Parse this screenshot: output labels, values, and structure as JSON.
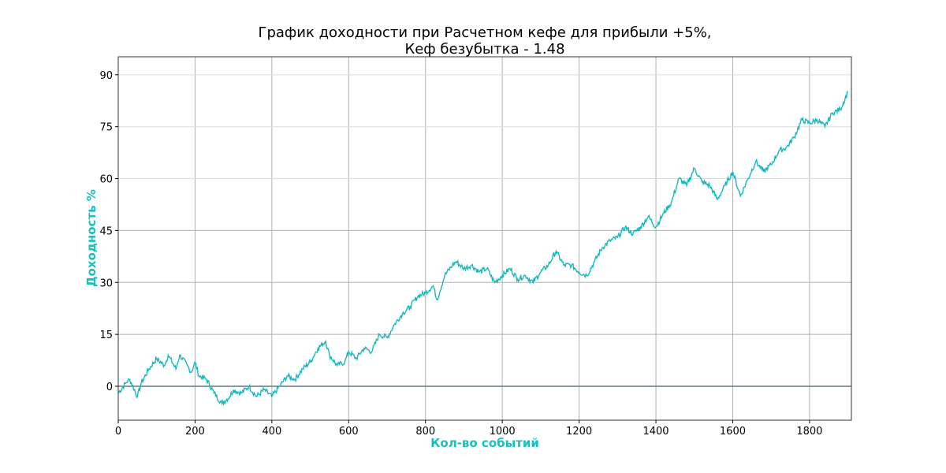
{
  "chart_data": {
    "type": "line",
    "title_lines": [
      "График доходности при Расчетном кефе для прибыли +5%,",
      "Кеф безубытка - 1.48"
    ],
    "xlabel": "Кол-во событий",
    "ylabel": "Доходность %",
    "xlim": [
      0,
      1909
    ],
    "ylim": [
      -9.8,
      95.2
    ],
    "xticks": [
      0,
      200,
      400,
      600,
      800,
      1000,
      1200,
      1400,
      1600,
      1800
    ],
    "yticks": [
      0,
      15,
      30,
      45,
      60,
      75,
      90
    ],
    "grid": true,
    "label_color": "#17bfbf",
    "line_color": "#17b8bd",
    "zero_line_color": "#5f7a86",
    "series": [
      {
        "name": "Доходность",
        "x": [
          0,
          20,
          30,
          50,
          60,
          80,
          100,
          120,
          130,
          150,
          160,
          180,
          190,
          200,
          210,
          230,
          250,
          270,
          290,
          300,
          320,
          340,
          360,
          380,
          400,
          420,
          440,
          460,
          480,
          500,
          520,
          540,
          550,
          570,
          590,
          600,
          620,
          640,
          660,
          680,
          700,
          720,
          740,
          760,
          780,
          800,
          820,
          830,
          850,
          870,
          880,
          900,
          920,
          940,
          960,
          980,
          1000,
          1020,
          1040,
          1060,
          1080,
          1100,
          1120,
          1140,
          1160,
          1180,
          1200,
          1220,
          1240,
          1260,
          1280,
          1300,
          1320,
          1340,
          1360,
          1380,
          1400,
          1420,
          1440,
          1460,
          1480,
          1500,
          1520,
          1540,
          1560,
          1580,
          1600,
          1620,
          1640,
          1660,
          1680,
          1700,
          1720,
          1740,
          1760,
          1780,
          1800,
          1820,
          1840,
          1860,
          1880,
          1900
        ],
        "y": [
          -2,
          1,
          2,
          -3,
          1,
          5,
          8,
          6,
          9,
          5,
          9,
          6,
          4,
          7,
          3,
          2,
          -2,
          -5,
          -3,
          -1,
          -2,
          0,
          -3,
          -1,
          -3,
          0,
          3,
          2,
          5,
          7,
          11,
          13,
          9,
          6,
          7,
          10,
          8,
          11,
          10,
          15,
          14,
          18,
          21,
          23,
          26,
          27,
          29,
          25,
          32,
          35,
          36,
          34,
          35,
          33,
          34,
          30,
          32,
          34,
          31,
          32,
          30,
          33,
          35,
          39,
          35,
          35,
          33,
          32,
          36,
          40,
          42,
          43,
          46,
          44,
          46,
          49,
          46,
          50,
          53,
          60,
          58,
          63,
          59,
          58,
          54,
          58,
          62,
          55,
          60,
          65,
          62,
          64,
          68,
          69,
          72,
          77,
          76,
          77,
          75,
          79,
          80,
          85
        ]
      }
    ]
  }
}
